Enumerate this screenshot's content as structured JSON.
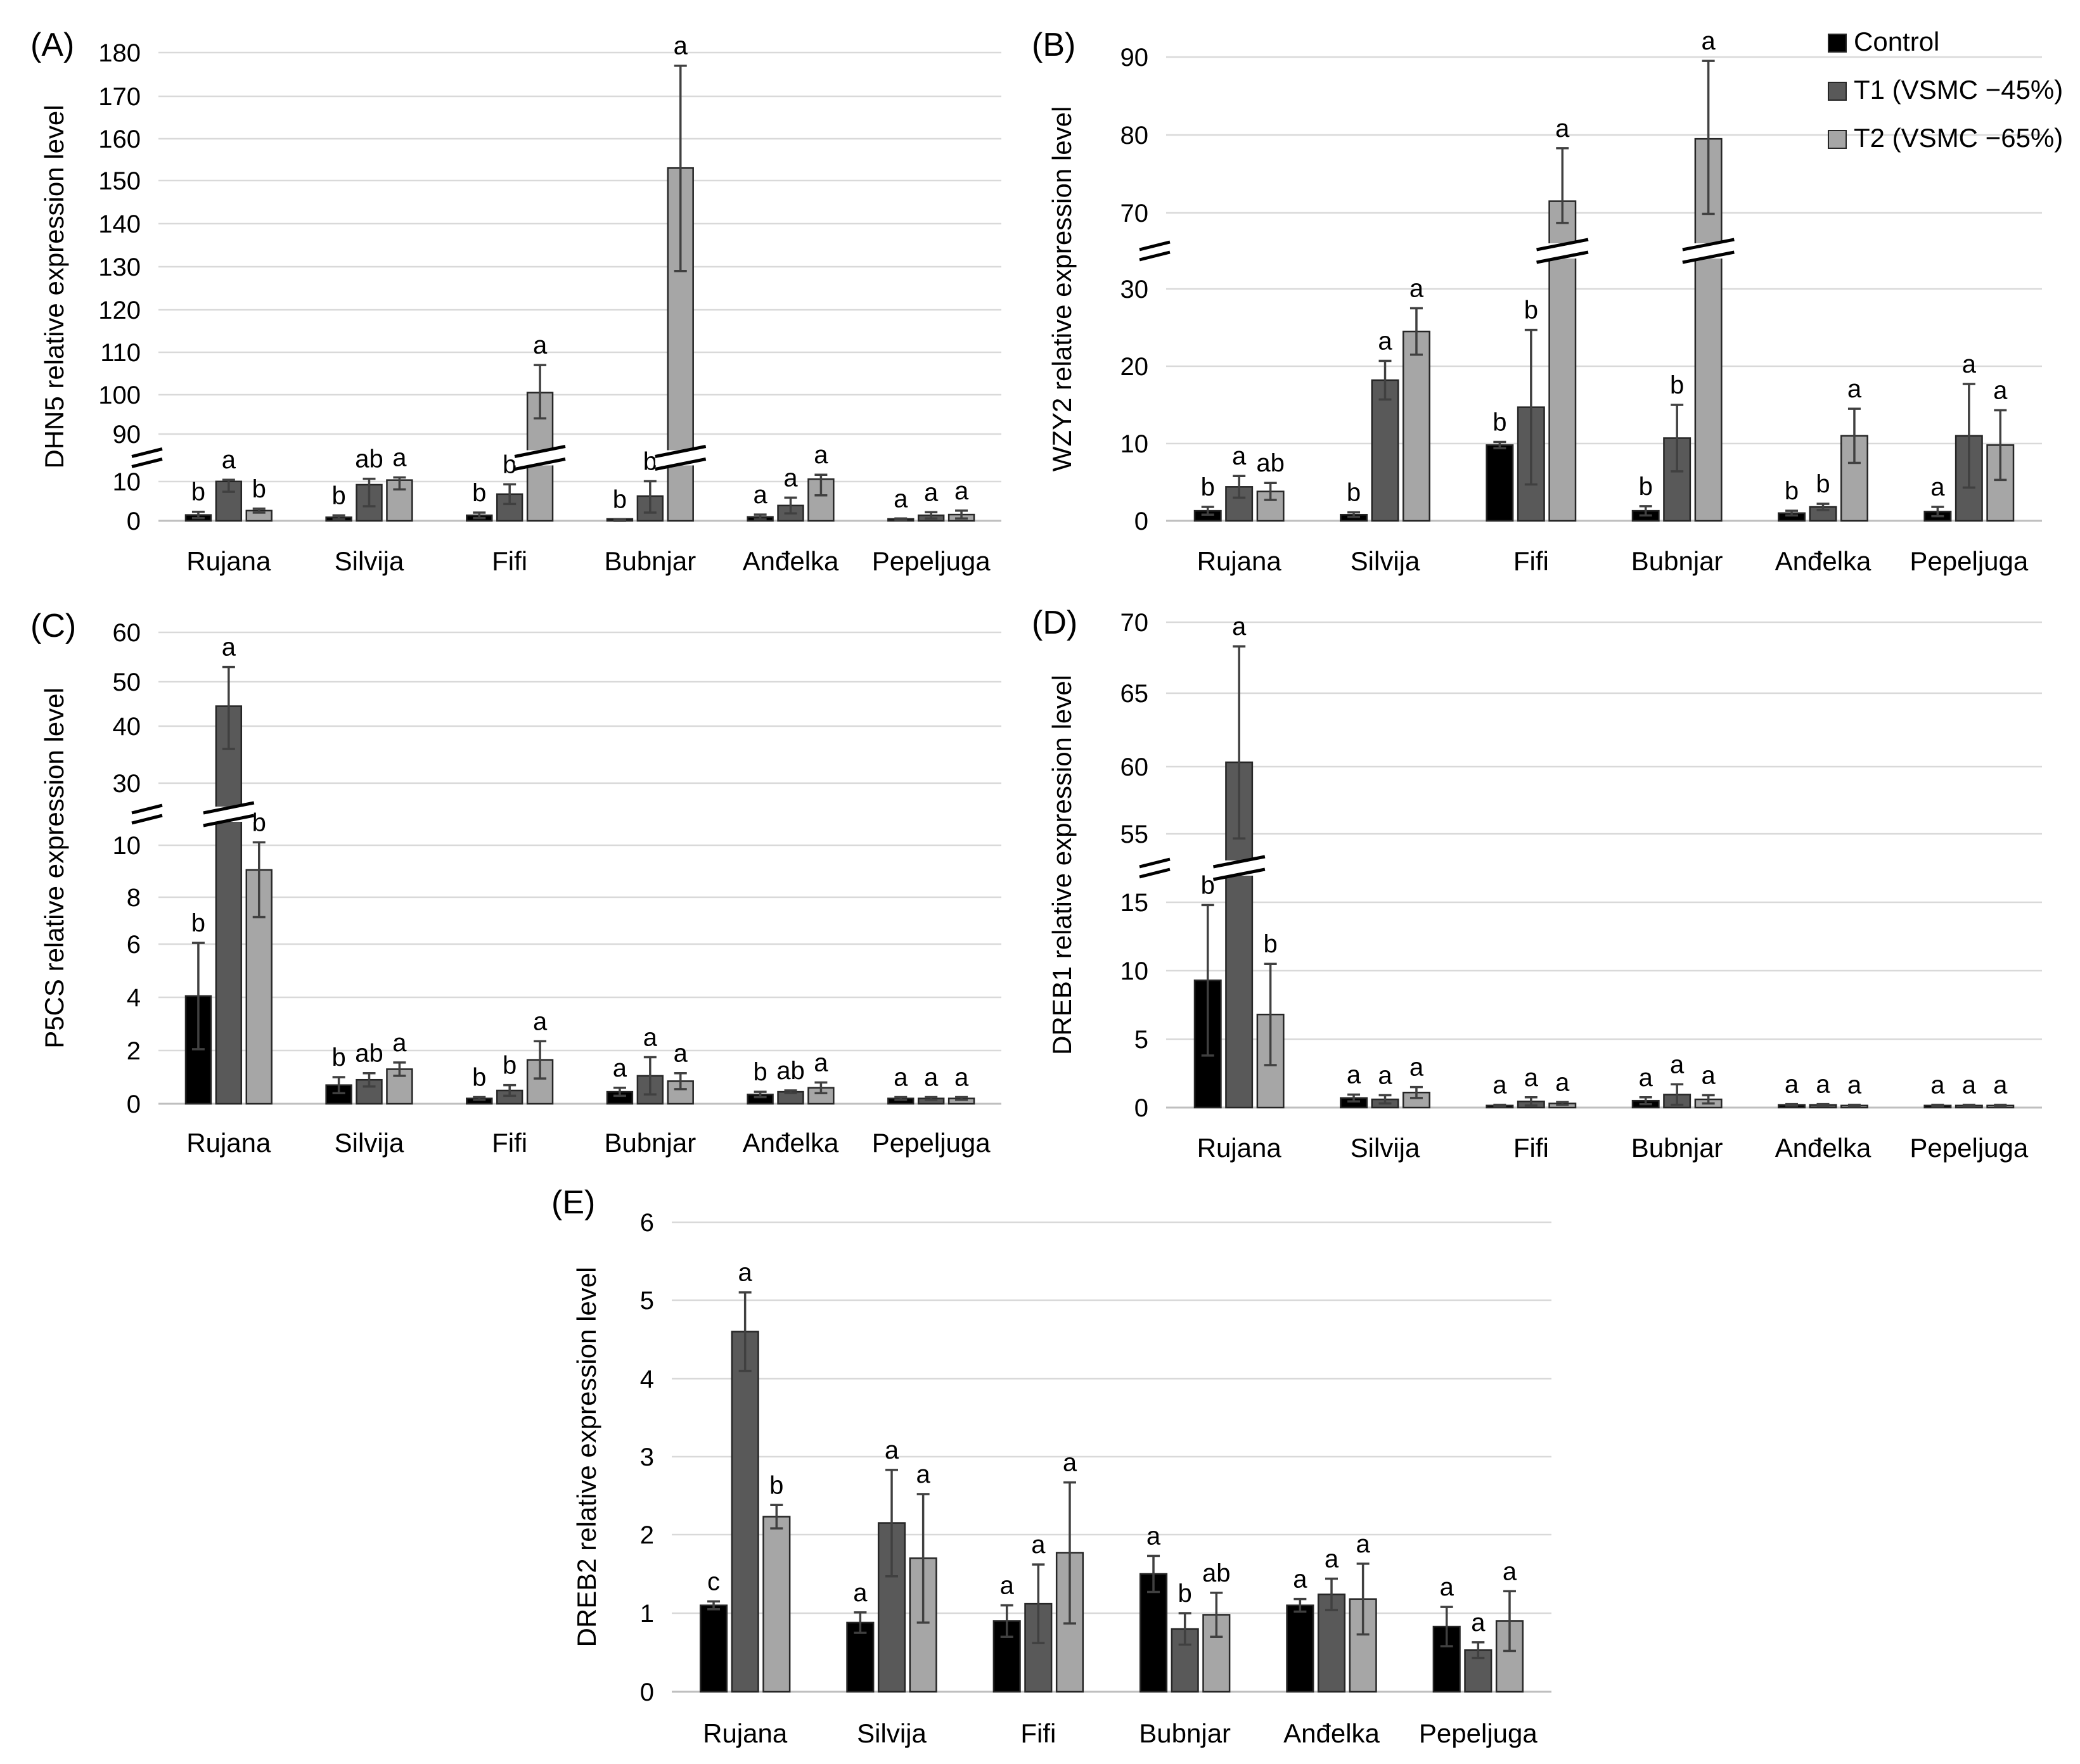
{
  "legend": {
    "items": [
      {
        "label": "Control",
        "color": "#000000"
      },
      {
        "label": "T1 (VSMC −45%)",
        "color": "#595959"
      },
      {
        "label": "T2 (VSMC −65%)",
        "color": "#a6a6a6"
      }
    ]
  },
  "chart_data": [
    {
      "panel": "(A)",
      "type": "bar",
      "ylabel": "DHN5 relative expression level",
      "categories": [
        "Rujana",
        "Silvija",
        "Fifi",
        "Bubnjar",
        "Anđelka",
        "Pepeljuga"
      ],
      "axis_break": {
        "lower": [
          0,
          10
        ],
        "upper": [
          90,
          180
        ]
      },
      "yticks": [
        0,
        10,
        90,
        100,
        110,
        120,
        130,
        140,
        150,
        160,
        170,
        180
      ],
      "series": [
        {
          "name": "Control",
          "values": [
            1.5,
            0.9,
            1.4,
            0.2,
            1.0,
            0.4
          ],
          "errors": [
            0.8,
            0.5,
            0.7,
            0.2,
            0.6,
            0.2
          ],
          "letters": [
            "b",
            "b",
            "b",
            "b",
            "a",
            "a"
          ]
        },
        {
          "name": "T1 (VSMC −45%)",
          "values": [
            10.2,
            9.2,
            6.8,
            6.3,
            3.9,
            1.4
          ],
          "errors": [
            2.8,
            5.5,
            2.5,
            4.2,
            2.0,
            0.8
          ],
          "letters": [
            "a",
            "ab",
            "b",
            "b",
            "a",
            "a"
          ]
        },
        {
          "name": "T2 (VSMC −65%)",
          "values": [
            2.6,
            12.5,
            100.5,
            153,
            14.0,
            1.6
          ],
          "errors": [
            0.5,
            4.5,
            6.5,
            24,
            7.5,
            1.0
          ],
          "letters": [
            "b",
            "a",
            "a",
            "a",
            "a",
            "a"
          ]
        }
      ]
    },
    {
      "panel": "(B)",
      "type": "bar",
      "ylabel": "WZY2 relative expression level",
      "categories": [
        "Rujana",
        "Silvija",
        "Fifi",
        "Bubnjar",
        "Anđelka",
        "Pepeljuga"
      ],
      "axis_break": {
        "lower": [
          0,
          30
        ],
        "upper": [
          70,
          90
        ]
      },
      "yticks": [
        0,
        10,
        20,
        30,
        70,
        80,
        90
      ],
      "series": [
        {
          "name": "Control",
          "values": [
            1.3,
            0.8,
            9.8,
            1.3,
            1.0,
            1.2
          ],
          "errors": [
            0.5,
            0.3,
            0.4,
            0.6,
            0.3,
            0.6
          ],
          "letters": [
            "b",
            "b",
            "b",
            "b",
            "b",
            "a"
          ]
        },
        {
          "name": "T1 (VSMC −45%)",
          "values": [
            4.4,
            18.2,
            14.7,
            10.7,
            1.8,
            11.0
          ],
          "errors": [
            1.4,
            2.5,
            10.0,
            4.3,
            0.4,
            6.7
          ],
          "letters": [
            "a",
            "a",
            "b",
            "b",
            "b",
            "a"
          ]
        },
        {
          "name": "T2 (VSMC −65%)",
          "values": [
            3.8,
            24.5,
            71.5,
            79.5,
            11.0,
            9.8
          ],
          "errors": [
            1.1,
            3.0,
            6.8,
            10.0,
            3.5,
            4.5
          ],
          "letters": [
            "ab",
            "a",
            "a",
            "a",
            "a",
            "a"
          ]
        }
      ]
    },
    {
      "panel": "(C)",
      "type": "bar",
      "ylabel": "P5CS relative expression level",
      "categories": [
        "Rujana",
        "Silvija",
        "Fifi",
        "Bubnjar",
        "Anđelka",
        "Pepeljuga"
      ],
      "axis_break": {
        "lower": [
          0,
          10
        ],
        "upper": [
          30,
          60
        ]
      },
      "yticks": [
        0,
        2,
        4,
        6,
        8,
        10,
        30,
        40,
        50,
        60
      ],
      "series": [
        {
          "name": "Control",
          "values": [
            4.05,
            0.7,
            0.2,
            0.45,
            0.35,
            0.2
          ],
          "errors": [
            2.0,
            0.3,
            0.05,
            0.15,
            0.1,
            0.05
          ],
          "letters": [
            "b",
            "b",
            "b",
            "a",
            "b",
            "a"
          ]
        },
        {
          "name": "T1 (VSMC −45%)",
          "values": [
            44.5,
            0.9,
            0.5,
            1.05,
            0.45,
            0.2
          ],
          "errors": [
            8.5,
            0.25,
            0.2,
            0.7,
            0.05,
            0.05
          ],
          "letters": [
            "a",
            "ab",
            "b",
            "a",
            "ab",
            "a"
          ]
        },
        {
          "name": "T2 (VSMC −65%)",
          "values": [
            9.05,
            1.3,
            1.65,
            0.85,
            0.6,
            0.2
          ],
          "errors": [
            1.9,
            0.25,
            0.7,
            0.3,
            0.2,
            0.05
          ],
          "letters": [
            "b",
            "a",
            "a",
            "a",
            "a",
            "a"
          ]
        }
      ]
    },
    {
      "panel": "(D)",
      "type": "bar",
      "ylabel": "DREB1 relative expression level",
      "categories": [
        "Rujana",
        "Silvija",
        "Fifi",
        "Bubnjar",
        "Anđelka",
        "Pepeljuga"
      ],
      "axis_break": {
        "lower": [
          0,
          15
        ],
        "upper": [
          55,
          70
        ]
      },
      "yticks": [
        0,
        5,
        10,
        15,
        55,
        60,
        65,
        70
      ],
      "series": [
        {
          "name": "Control",
          "values": [
            9.3,
            0.7,
            0.15,
            0.5,
            0.2,
            0.15
          ],
          "errors": [
            5.5,
            0.25,
            0.05,
            0.25,
            0.05,
            0.05
          ],
          "letters": [
            "b",
            "a",
            "a",
            "a",
            "a",
            "a"
          ]
        },
        {
          "name": "T1 (VSMC −45%)",
          "values": [
            60.3,
            0.6,
            0.45,
            0.95,
            0.2,
            0.15
          ],
          "errors": [
            8.0,
            0.3,
            0.3,
            0.75,
            0.05,
            0.05
          ],
          "letters": [
            "a",
            "a",
            "a",
            "a",
            "a",
            "a"
          ]
        },
        {
          "name": "T2 (VSMC −65%)",
          "values": [
            6.8,
            1.1,
            0.3,
            0.6,
            0.15,
            0.15
          ],
          "errors": [
            3.7,
            0.4,
            0.1,
            0.3,
            0.05,
            0.05
          ],
          "letters": [
            "b",
            "a",
            "a",
            "a",
            "a",
            "a"
          ]
        }
      ]
    },
    {
      "panel": "(E)",
      "type": "bar",
      "ylabel": "DREB2 relative expression level",
      "categories": [
        "Rujana",
        "Silvija",
        "Fifi",
        "Bubnjar",
        "Anđelka",
        "Pepeljuga"
      ],
      "yticks": [
        0,
        1,
        2,
        3,
        4,
        5,
        6
      ],
      "ylim": [
        0,
        6
      ],
      "series": [
        {
          "name": "Control",
          "values": [
            1.1,
            0.88,
            0.9,
            1.5,
            1.1,
            0.83
          ],
          "errors": [
            0.05,
            0.13,
            0.2,
            0.23,
            0.08,
            0.25
          ],
          "letters": [
            "c",
            "a",
            "a",
            "a",
            "a",
            "a"
          ]
        },
        {
          "name": "T1 (VSMC −45%)",
          "values": [
            4.6,
            2.15,
            1.12,
            0.8,
            1.24,
            0.53
          ],
          "errors": [
            0.5,
            0.68,
            0.5,
            0.2,
            0.2,
            0.1
          ],
          "letters": [
            "a",
            "a",
            "a",
            "b",
            "a",
            "a"
          ]
        },
        {
          "name": "T2 (VSMC −65%)",
          "values": [
            2.23,
            1.7,
            1.77,
            0.98,
            1.18,
            0.9
          ],
          "errors": [
            0.15,
            0.82,
            0.9,
            0.28,
            0.45,
            0.38
          ],
          "letters": [
            "b",
            "a",
            "a",
            "ab",
            "a",
            "a"
          ]
        }
      ]
    }
  ]
}
